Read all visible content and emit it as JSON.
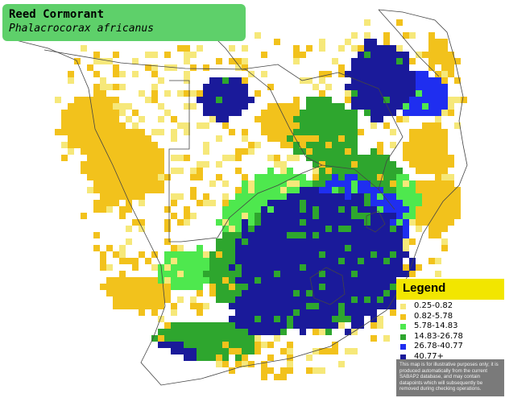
{
  "map": {
    "species_common": "Reed Cormorant",
    "species_scientific": "Phalacrocorax africanus"
  },
  "legend": {
    "title": "Legend",
    "items": [
      {
        "label": "0.25-0.82",
        "color": "#f6e87a"
      },
      {
        "label": "0.82-5.78",
        "color": "#f2c21c"
      },
      {
        "label": "5.78-14.83",
        "color": "#4ee84e"
      },
      {
        "label": "14.83-26.78",
        "color": "#2ea62e"
      },
      {
        "label": "26.78-40.77",
        "color": "#1f2ef0"
      },
      {
        "label": "40.77+",
        "color": "#1a1a9a"
      }
    ],
    "note": "This map is for illustrative purposes only; it is produced automatically from the current SABAP2 database, and may contain datapoints which will subsequently be removed during checking operations."
  },
  "colors": {
    "title_box": "#5ed06a",
    "legend_header": "#f2e600",
    "note_background": "#7a7a7a",
    "border_lines": "#444444"
  }
}
